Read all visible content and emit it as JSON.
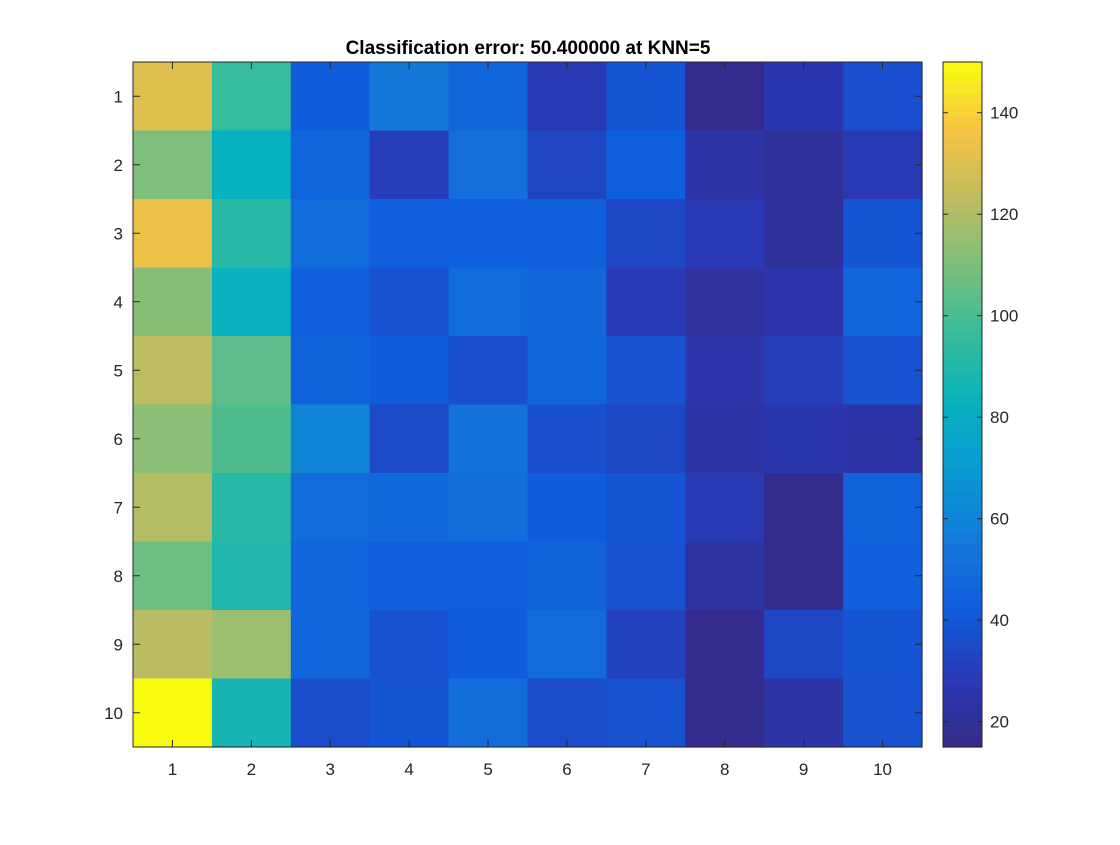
{
  "chart_data": {
    "type": "heatmap",
    "title": "Classification error: 50.400000 at KNN=5",
    "xlabel": "",
    "ylabel": "",
    "x": [
      1,
      2,
      3,
      4,
      5,
      6,
      7,
      8,
      9,
      10
    ],
    "y": [
      1,
      2,
      3,
      4,
      5,
      6,
      7,
      8,
      9,
      10
    ],
    "values": [
      [
        131,
        96,
        42,
        55,
        47,
        28,
        39,
        17,
        27,
        37
      ],
      [
        110,
        82,
        46,
        30,
        51,
        33,
        43,
        24,
        21,
        28
      ],
      [
        134,
        92,
        49,
        44,
        43,
        44,
        34,
        29,
        21,
        39
      ],
      [
        112,
        83,
        44,
        38,
        49,
        47,
        29,
        22,
        25,
        46
      ],
      [
        123,
        104,
        45,
        42,
        37,
        46,
        38,
        25,
        30,
        38
      ],
      [
        113,
        101,
        61,
        35,
        52,
        37,
        34,
        24,
        26,
        24
      ],
      [
        121,
        92,
        49,
        48,
        50,
        42,
        39,
        28,
        17,
        45
      ],
      [
        107,
        90,
        46,
        44,
        43,
        45,
        38,
        23,
        17,
        44
      ],
      [
        122,
        116,
        47,
        38,
        42,
        49,
        32,
        17,
        34,
        39
      ],
      [
        150,
        87,
        36,
        39,
        50,
        36,
        38,
        17,
        24,
        38
      ]
    ],
    "colormap": "parula",
    "clim": [
      15,
      150
    ],
    "colorbar": {
      "ticks": [
        20,
        40,
        60,
        80,
        100,
        120,
        140
      ],
      "tick_labels": [
        "20",
        "40",
        "60",
        "80",
        "100",
        "120",
        "140"
      ]
    },
    "x_tick_labels": [
      "1",
      "2",
      "3",
      "4",
      "5",
      "6",
      "7",
      "8",
      "9",
      "10"
    ],
    "y_tick_labels": [
      "1",
      "2",
      "3",
      "4",
      "5",
      "6",
      "7",
      "8",
      "9",
      "10"
    ],
    "grid": false,
    "legend": "none"
  }
}
